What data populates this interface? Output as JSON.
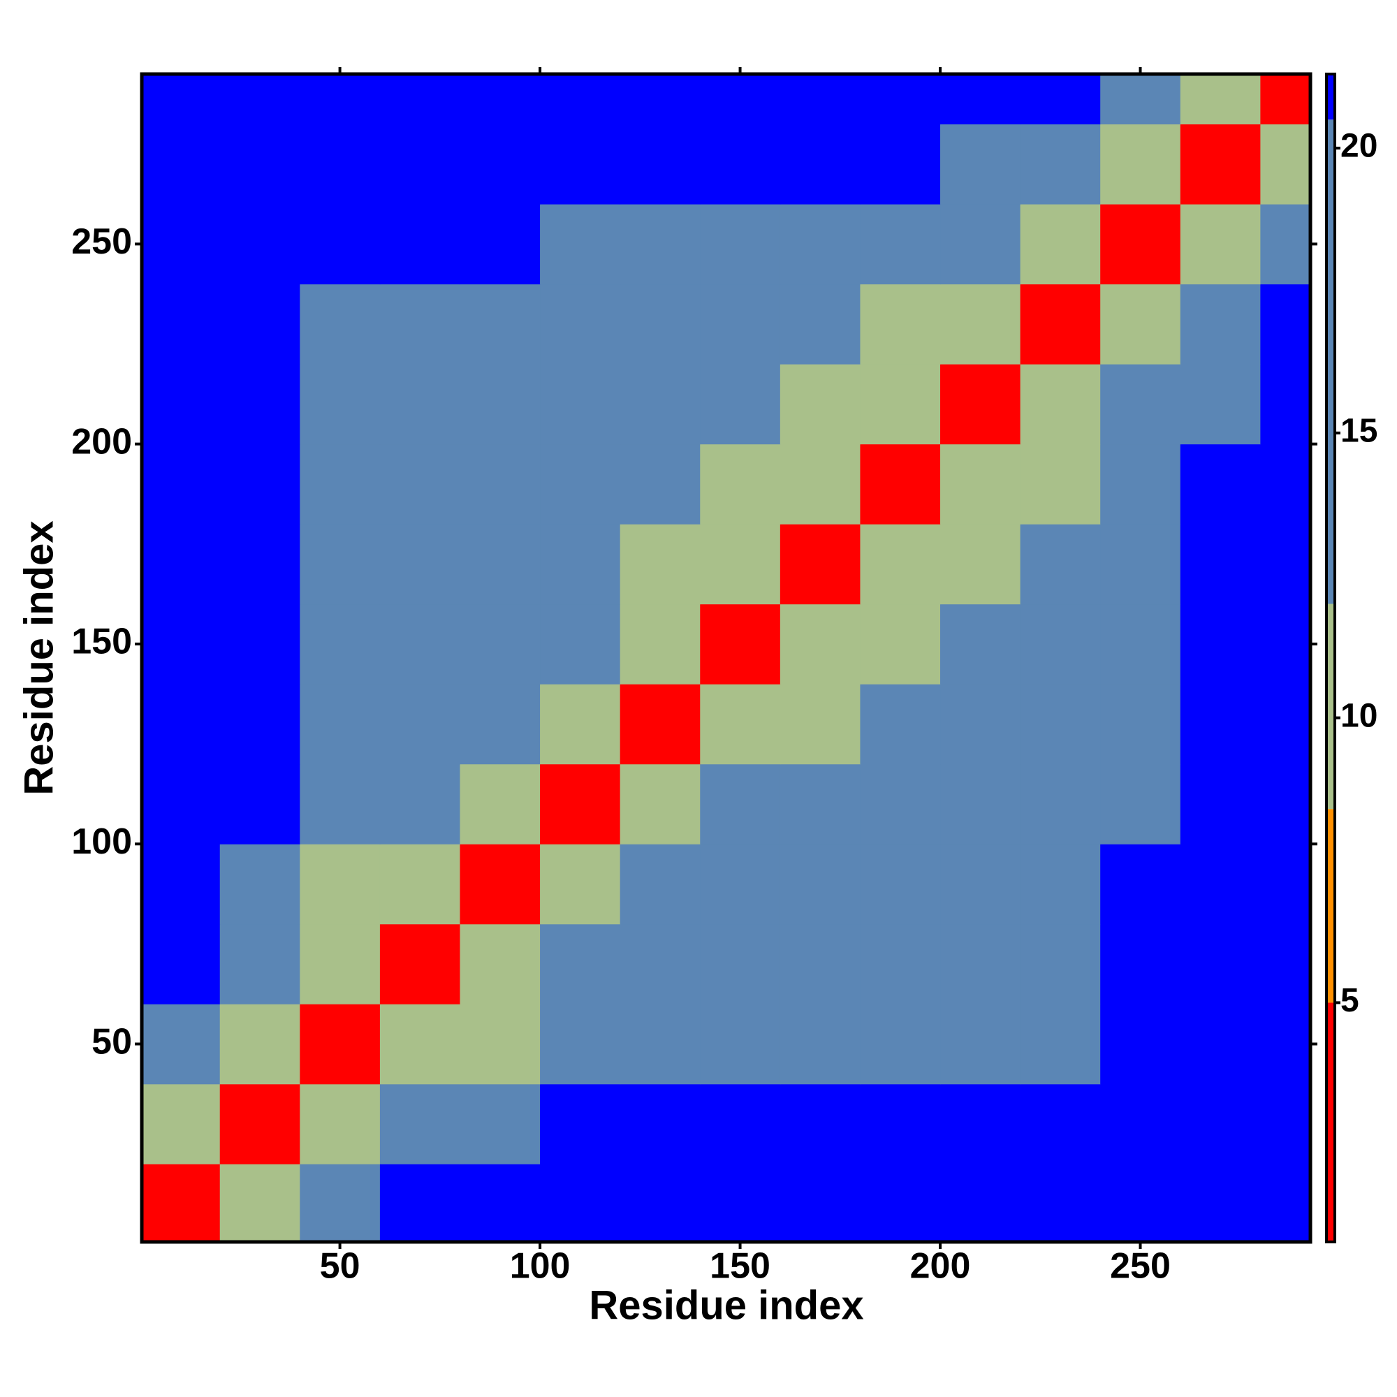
{
  "chart_data": {
    "type": "heatmap",
    "x_label": "Residue index",
    "y_label": "Residue index",
    "xlim": [
      0.5,
      292.5
    ],
    "ylim": [
      0.5,
      292.5
    ],
    "xticks": [
      50,
      100,
      150,
      200,
      250
    ],
    "yticks": [
      50,
      100,
      150,
      200,
      250
    ],
    "x_edges": [
      0.5,
      20,
      40,
      60,
      80,
      100,
      120,
      140,
      160,
      180,
      200,
      220,
      240,
      260,
      280,
      292.5
    ],
    "y_edges": [
      0.5,
      20,
      40,
      60,
      80,
      100,
      120,
      140,
      160,
      180,
      200,
      220,
      240,
      260,
      280,
      292.5
    ],
    "z": [
      [
        3,
        10,
        18,
        21,
        21,
        21,
        21,
        21,
        21,
        21,
        21,
        21,
        21,
        21,
        21
      ],
      [
        10,
        3,
        10,
        17,
        18,
        21,
        21,
        21,
        21,
        21,
        21,
        21,
        21,
        21,
        21
      ],
      [
        18,
        10,
        3,
        11,
        12,
        15,
        15,
        16,
        16,
        17,
        16,
        17,
        21,
        21,
        21
      ],
      [
        21,
        17,
        11,
        3,
        10,
        15,
        15,
        15,
        16,
        16,
        16,
        17,
        21,
        21,
        21
      ],
      [
        21,
        18,
        12,
        10,
        3,
        10,
        15,
        15,
        15,
        16,
        15,
        16,
        21,
        21,
        21
      ],
      [
        21,
        21,
        15,
        15,
        10,
        3,
        10,
        14,
        15,
        15,
        15,
        16,
        18,
        21,
        21
      ],
      [
        21,
        21,
        15,
        15,
        15,
        10,
        3,
        10,
        12,
        13,
        15,
        16,
        18,
        21,
        21
      ],
      [
        21,
        21,
        16,
        15,
        15,
        14,
        10,
        3,
        10,
        12,
        15,
        16,
        18,
        21,
        21
      ],
      [
        21,
        21,
        16,
        16,
        15,
        15,
        12,
        10,
        3,
        10,
        12,
        15,
        17,
        21,
        21
      ],
      [
        21,
        21,
        17,
        16,
        16,
        15,
        13,
        12,
        10,
        3,
        10,
        12,
        16,
        20.8,
        21
      ],
      [
        21,
        21,
        16,
        16,
        15,
        15,
        15,
        15,
        12,
        10,
        3,
        10,
        14,
        18,
        21
      ],
      [
        21,
        21,
        17,
        17,
        16,
        16,
        16,
        16,
        15,
        12,
        10,
        3,
        10,
        16,
        21
      ],
      [
        21,
        21,
        21,
        21,
        21,
        18,
        18,
        18,
        17,
        16,
        14,
        10,
        3,
        10,
        16
      ],
      [
        21,
        21,
        21,
        21,
        21,
        21,
        21,
        21,
        21,
        20.8,
        18,
        16,
        10,
        3,
        10
      ],
      [
        21,
        21,
        21,
        21,
        21,
        21,
        21,
        21,
        21,
        21,
        21,
        21,
        16,
        10,
        3
      ]
    ],
    "colorbar": {
      "lim": [
        0.8,
        21.3
      ],
      "ticks": [
        5,
        10,
        15,
        20
      ],
      "bounds": [
        0.8,
        5,
        8.4,
        12,
        20.5,
        21.3
      ],
      "colors": [
        "#ff0000",
        "#ff9000",
        "#a9c08a",
        "#5b86b5",
        "#0000ff"
      ]
    }
  }
}
